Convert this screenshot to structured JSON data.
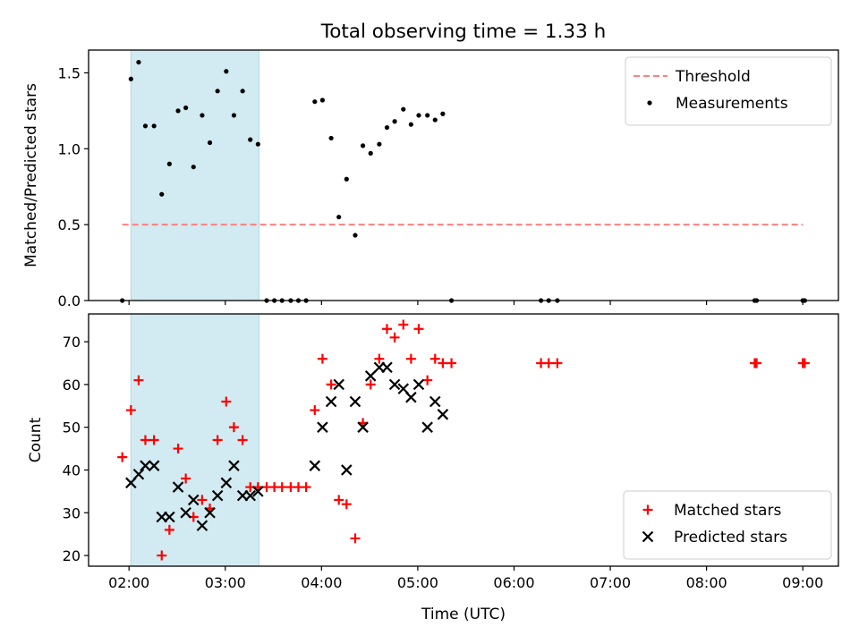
{
  "figure": {
    "title": "Total observing time = 1.33 h",
    "xlabel": "Time (UTC)"
  },
  "chart_data": [
    {
      "type": "scatter",
      "panel": "top",
      "ylabel": "Matched/Predicted stars",
      "x_unit": "hours since 00:00 UTC",
      "xlim": [
        1.58,
        9.37
      ],
      "ylim": [
        0,
        1.65
      ],
      "xticks": [
        2,
        3,
        4,
        5,
        6,
        7,
        8,
        9
      ],
      "xtick_labels": [
        "02:00",
        "03:00",
        "04:00",
        "05:00",
        "06:00",
        "07:00",
        "08:00",
        "09:00"
      ],
      "yticks": [
        0,
        0.5,
        1.0,
        1.5
      ],
      "ytick_labels": [
        "0.0",
        "0.5",
        "1.0",
        "1.5"
      ],
      "shaded_span": [
        2.02,
        3.35
      ],
      "shaded_color": "#add8e6",
      "legend_position": "upper right",
      "threshold": {
        "name": "Threshold",
        "y": 0.5,
        "x": [
          1.93,
          9.0
        ],
        "color": "#ff7f7f",
        "style": "dashed"
      },
      "series": [
        {
          "name": "Measurements",
          "color": "#000000",
          "marker": "dot",
          "x": [
            1.93,
            2.02,
            2.1,
            2.17,
            2.26,
            2.34,
            2.42,
            2.51,
            2.59,
            2.67,
            2.76,
            2.84,
            2.92,
            3.01,
            3.09,
            3.18,
            3.26,
            3.34,
            3.43,
            3.51,
            3.59,
            3.68,
            3.76,
            3.84,
            3.93,
            4.01,
            4.1,
            4.18,
            4.26,
            4.35,
            4.43,
            4.51,
            4.6,
            4.68,
            4.76,
            4.85,
            4.93,
            5.01,
            5.1,
            5.18,
            5.26,
            5.35,
            6.28,
            6.36,
            6.45,
            8.5,
            8.52,
            9.0,
            9.02
          ],
          "y": [
            0.0,
            1.46,
            1.57,
            1.15,
            1.15,
            0.7,
            0.9,
            1.25,
            1.27,
            0.88,
            1.22,
            1.04,
            1.38,
            1.51,
            1.22,
            1.38,
            1.06,
            1.03,
            0.0,
            0.0,
            0.0,
            0.0,
            0.0,
            0.0,
            1.31,
            1.32,
            1.07,
            0.55,
            0.8,
            0.43,
            1.02,
            0.97,
            1.03,
            1.14,
            1.18,
            1.26,
            1.16,
            1.22,
            1.22,
            1.19,
            1.23,
            0.0,
            0.0,
            0.0,
            0.0,
            0.0,
            0.0,
            0.0,
            0.0
          ]
        }
      ]
    },
    {
      "type": "scatter",
      "panel": "bottom",
      "ylabel": "Count",
      "x_unit": "hours since 00:00 UTC",
      "xlim": [
        1.58,
        9.37
      ],
      "ylim": [
        17.5,
        76.5
      ],
      "xticks": [
        2,
        3,
        4,
        5,
        6,
        7,
        8,
        9
      ],
      "xtick_labels": [
        "02:00",
        "03:00",
        "04:00",
        "05:00",
        "06:00",
        "07:00",
        "08:00",
        "09:00"
      ],
      "yticks": [
        20,
        30,
        40,
        50,
        60,
        70
      ],
      "ytick_labels": [
        "20",
        "30",
        "40",
        "50",
        "60",
        "70"
      ],
      "shaded_span": [
        2.02,
        3.35
      ],
      "shaded_color": "#add8e6",
      "legend_position": "lower right",
      "series": [
        {
          "name": "Matched stars",
          "color": "#ff0000",
          "marker": "plus",
          "x": [
            1.93,
            2.02,
            2.1,
            2.17,
            2.26,
            2.34,
            2.42,
            2.51,
            2.59,
            2.67,
            2.76,
            2.84,
            2.92,
            3.01,
            3.09,
            3.18,
            3.26,
            3.34,
            3.43,
            3.51,
            3.59,
            3.68,
            3.76,
            3.84,
            3.93,
            4.01,
            4.1,
            4.18,
            4.26,
            4.35,
            4.43,
            4.51,
            4.6,
            4.68,
            4.76,
            4.85,
            4.93,
            5.01,
            5.1,
            5.18,
            5.26,
            5.35,
            6.28,
            6.36,
            6.45,
            8.5,
            8.52,
            9.0,
            9.02
          ],
          "y": [
            43,
            54,
            61,
            47,
            47,
            20,
            26,
            45,
            38,
            29,
            33,
            31,
            47,
            56,
            50,
            47,
            36,
            36,
            36,
            36,
            36,
            36,
            36,
            36,
            54,
            66,
            60,
            33,
            32,
            24,
            51,
            60,
            66,
            73,
            71,
            74,
            66,
            73,
            61,
            66,
            65,
            65,
            65,
            65,
            65,
            65,
            65,
            65,
            65
          ]
        },
        {
          "name": "Predicted stars",
          "color": "#000000",
          "marker": "x",
          "x": [
            2.02,
            2.1,
            2.17,
            2.26,
            2.34,
            2.42,
            2.51,
            2.59,
            2.67,
            2.76,
            2.84,
            2.92,
            3.01,
            3.09,
            3.18,
            3.26,
            3.34,
            3.93,
            4.01,
            4.1,
            4.18,
            4.26,
            4.35,
            4.43,
            4.51,
            4.6,
            4.68,
            4.76,
            4.85,
            4.93,
            5.01,
            5.1,
            5.18,
            5.26
          ],
          "y": [
            37,
            39,
            41,
            41,
            29,
            29,
            36,
            30,
            33,
            27,
            30,
            34,
            37,
            41,
            34,
            34,
            35,
            41,
            50,
            56,
            60,
            40,
            56,
            50,
            62,
            64,
            64,
            60,
            59,
            57,
            60,
            50,
            56,
            53
          ]
        }
      ]
    }
  ]
}
